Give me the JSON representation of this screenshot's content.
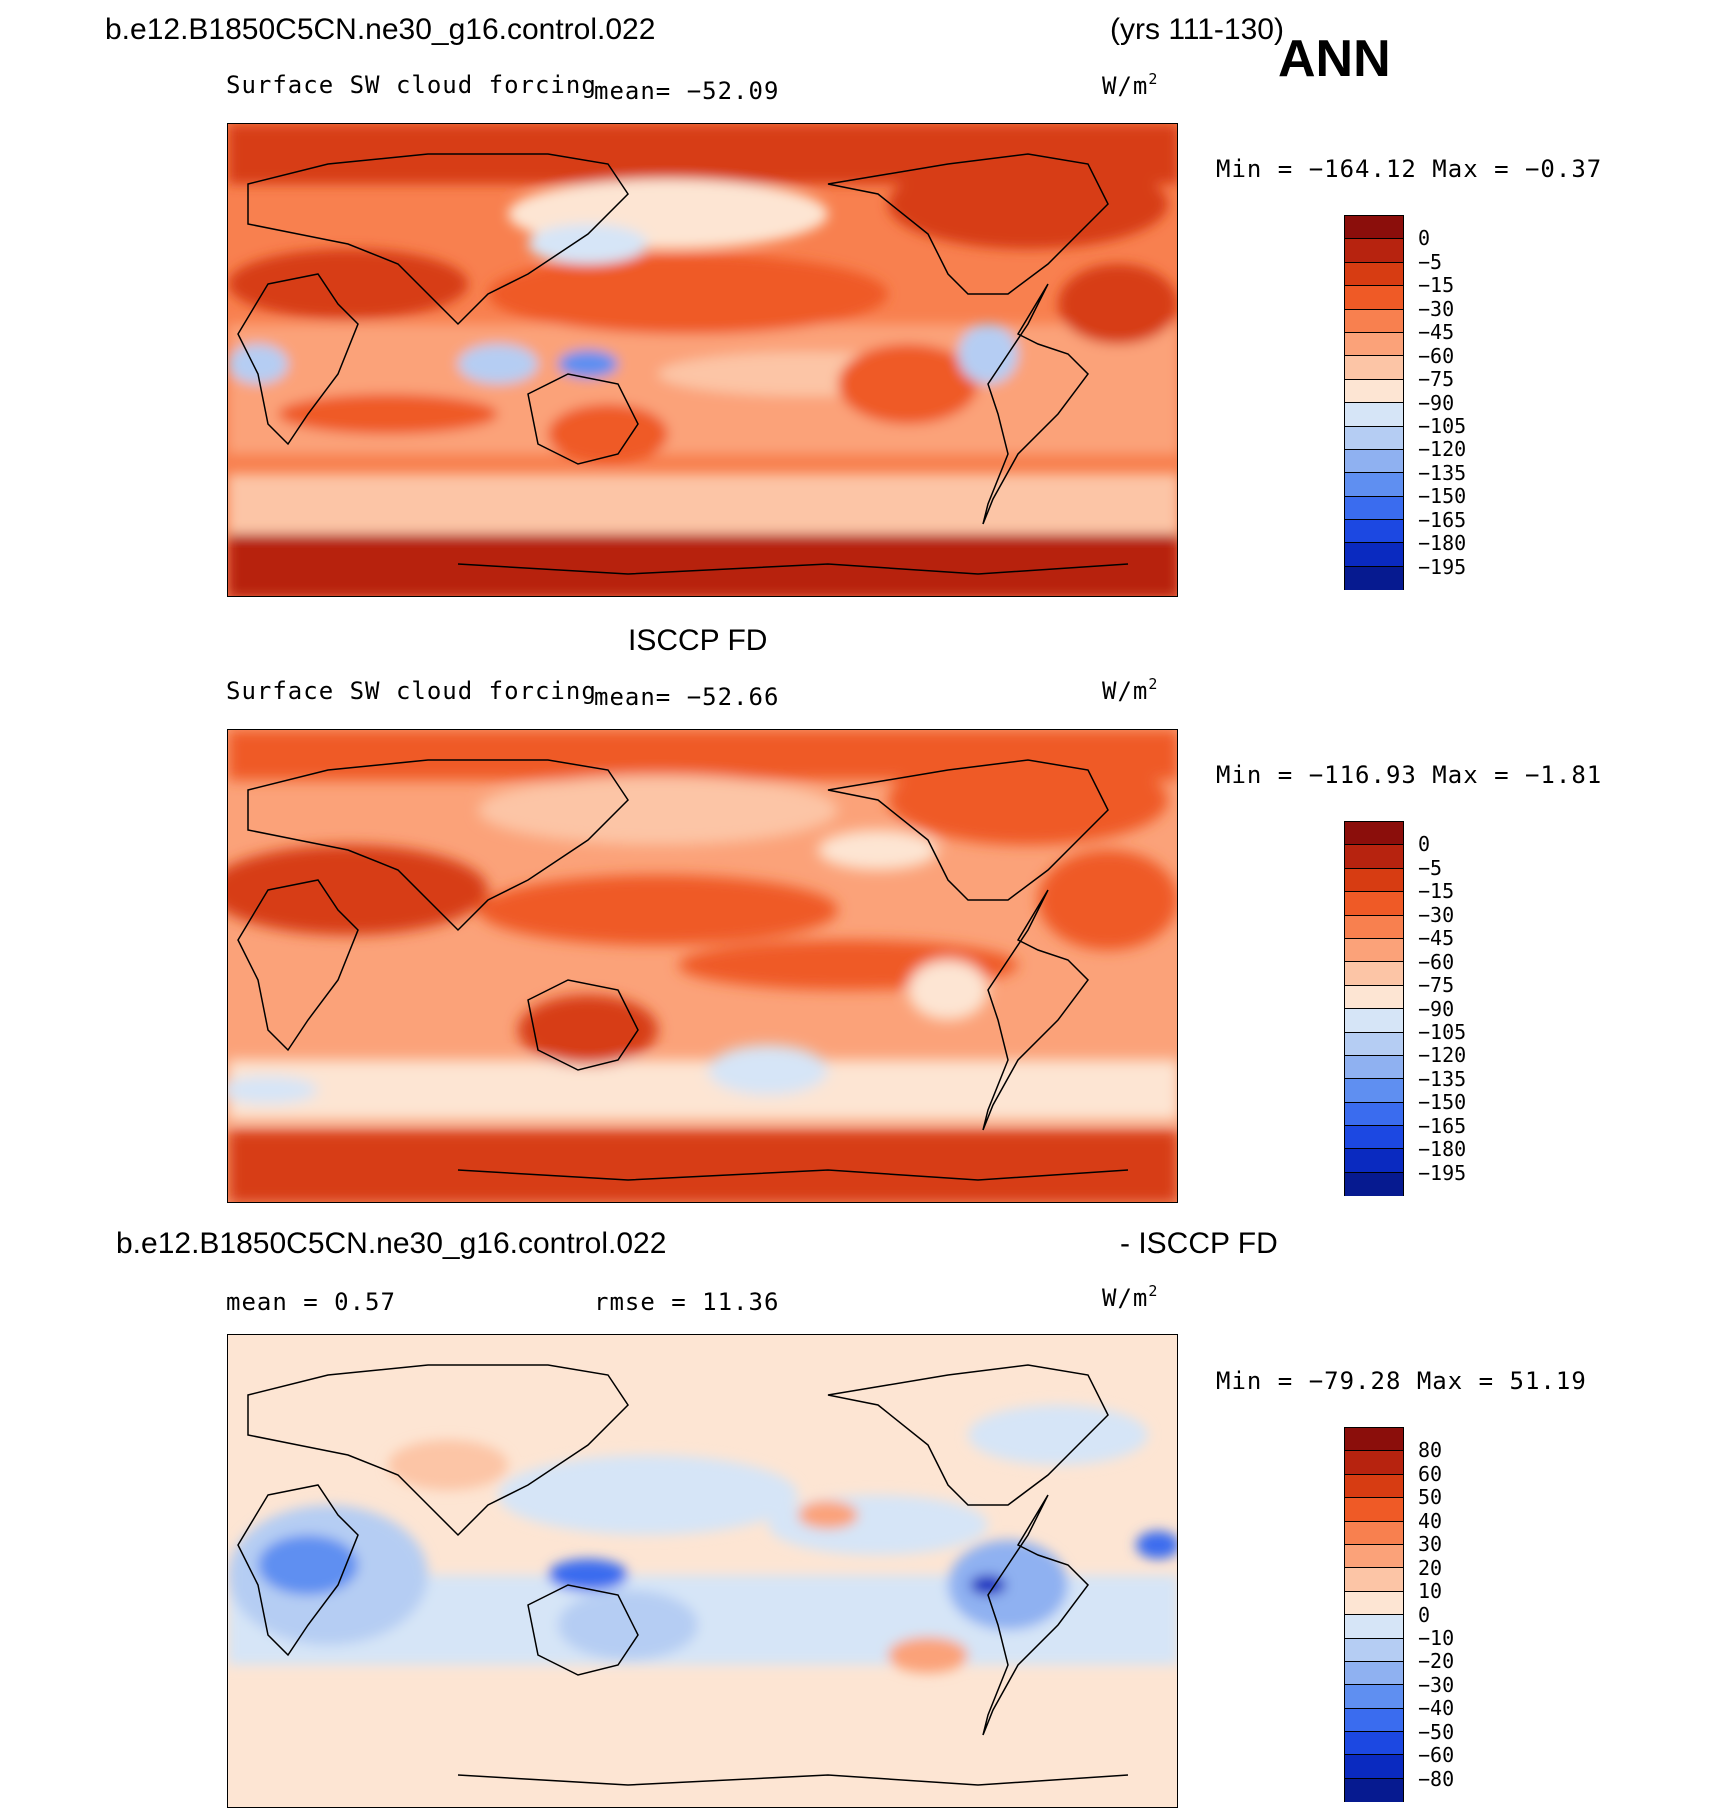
{
  "header": {
    "case_name": "b.e12.B1850C5CN.ne30_g16.control.022",
    "years": "(yrs 111-130)",
    "season": "ANN"
  },
  "panels": [
    {
      "id": "model",
      "title_left": "",
      "variable": "Surface SW cloud forcing",
      "stat1": "mean=  −52.09",
      "stat2": "",
      "units_base": "W/m",
      "units_exp": "2",
      "minmax": "Min = −164.12 Max =   −0.37",
      "colorbar": {
        "levels": [
          "0",
          "−5",
          "−15",
          "−30",
          "−45",
          "−60",
          "−75",
          "−90",
          "−105",
          "−120",
          "−135",
          "−150",
          "−165",
          "−180",
          "−195"
        ],
        "colors": [
          "#8b0e0b",
          "#b7230f",
          "#d73c12",
          "#ef5a26",
          "#f8804f",
          "#fba279",
          "#fcc5a6",
          "#fde5d3",
          "#d6e5f7",
          "#b5cdf3",
          "#8fb1f1",
          "#5f8ff1",
          "#3a6cef",
          "#1c48e2",
          "#0a2ac0",
          "#061a90"
        ]
      }
    },
    {
      "id": "obs",
      "title_left": "ISCCP FD",
      "variable": "Surface SW cloud forcing",
      "stat1": "mean=  −52.66",
      "stat2": "",
      "units_base": "W/m",
      "units_exp": "2",
      "minmax": "Min = −116.93 Max =   −1.81",
      "colorbar": {
        "levels": [
          "0",
          "−5",
          "−15",
          "−30",
          "−45",
          "−60",
          "−75",
          "−90",
          "−105",
          "−120",
          "−135",
          "−150",
          "−165",
          "−180",
          "−195"
        ],
        "colors": [
          "#8b0e0b",
          "#b7230f",
          "#d73c12",
          "#ef5a26",
          "#f8804f",
          "#fba279",
          "#fcc5a6",
          "#fde5d3",
          "#d6e5f7",
          "#b5cdf3",
          "#8fb1f1",
          "#5f8ff1",
          "#3a6cef",
          "#1c48e2",
          "#0a2ac0",
          "#061a90"
        ]
      }
    },
    {
      "id": "diff",
      "title_left": "b.e12.B1850C5CN.ne30_g16.control.022",
      "title_right": "- ISCCP FD",
      "variable": "",
      "stat1": "mean =    0.57",
      "stat2": "rmse =   11.36",
      "units_base": "W/m",
      "units_exp": "2",
      "minmax": "Min = −79.28 Max =   51.19",
      "colorbar": {
        "levels": [
          "80",
          "60",
          "50",
          "40",
          "30",
          "20",
          "10",
          "0",
          "−10",
          "−20",
          "−30",
          "−40",
          "−50",
          "−60",
          "−80"
        ],
        "colors": [
          "#8b0e0b",
          "#b7230f",
          "#d73c12",
          "#ef5a26",
          "#f8804f",
          "#fba279",
          "#fcc5a6",
          "#fde5d3",
          "#d6e5f7",
          "#b5cdf3",
          "#8fb1f1",
          "#5f8ff1",
          "#3a6cef",
          "#1c48e2",
          "#0a2ac0",
          "#061a90"
        ]
      }
    }
  ]
}
